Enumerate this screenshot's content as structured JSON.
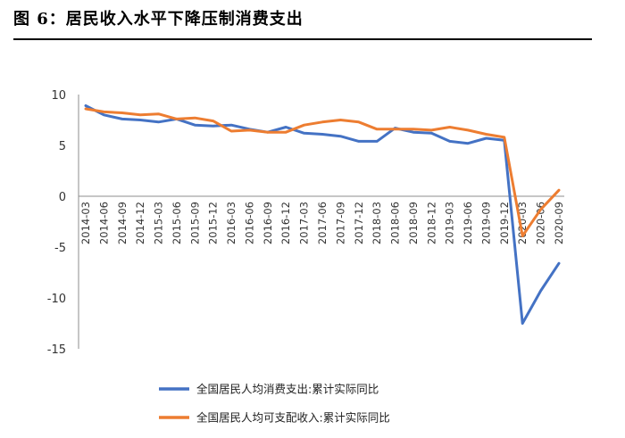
{
  "header": {
    "title": "图 6：居民收入水平下降压制消费支出"
  },
  "chart_data": {
    "type": "line",
    "title": "图 6：居民收入水平下降压制消费支出",
    "xlabel": "",
    "ylabel": "",
    "ylim": [
      -15,
      10
    ],
    "y_ticks": [
      "10",
      "5",
      "0",
      "-5",
      "-10",
      "-15"
    ],
    "grid": false,
    "legend_position": "bottom",
    "x": [
      "2014-03",
      "2014-06",
      "2014-09",
      "2014-12",
      "2015-03",
      "2015-06",
      "2015-09",
      "2015-12",
      "2016-03",
      "2016-06",
      "2016-09",
      "2016-12",
      "2017-03",
      "2017-06",
      "2017-09",
      "2017-12",
      "2018-03",
      "2018-06",
      "2018-09",
      "2018-12",
      "2019-03",
      "2019-06",
      "2019-09",
      "2019-12",
      "2020-03",
      "2020-06",
      "2020-09"
    ],
    "series": [
      {
        "name": "全国居民人均消费支出:累计实际同比",
        "color": "#4472c4",
        "values": [
          8.9,
          8.0,
          7.6,
          7.5,
          7.3,
          7.6,
          7.0,
          6.9,
          7.0,
          6.6,
          6.3,
          6.8,
          6.2,
          6.1,
          5.9,
          5.4,
          5.4,
          6.7,
          6.3,
          6.2,
          5.4,
          5.2,
          5.7,
          5.5,
          -12.5,
          -9.3,
          -6.6
        ]
      },
      {
        "name": "全国居民人均可支配收入:累计实际同比",
        "color": "#ed7d31",
        "values": [
          8.6,
          8.3,
          8.2,
          8.0,
          8.1,
          7.6,
          7.7,
          7.4,
          6.4,
          6.5,
          6.3,
          6.3,
          7.0,
          7.3,
          7.5,
          7.3,
          6.6,
          6.6,
          6.6,
          6.5,
          6.8,
          6.5,
          6.1,
          5.8,
          -3.9,
          -1.3,
          0.6
        ]
      }
    ]
  }
}
